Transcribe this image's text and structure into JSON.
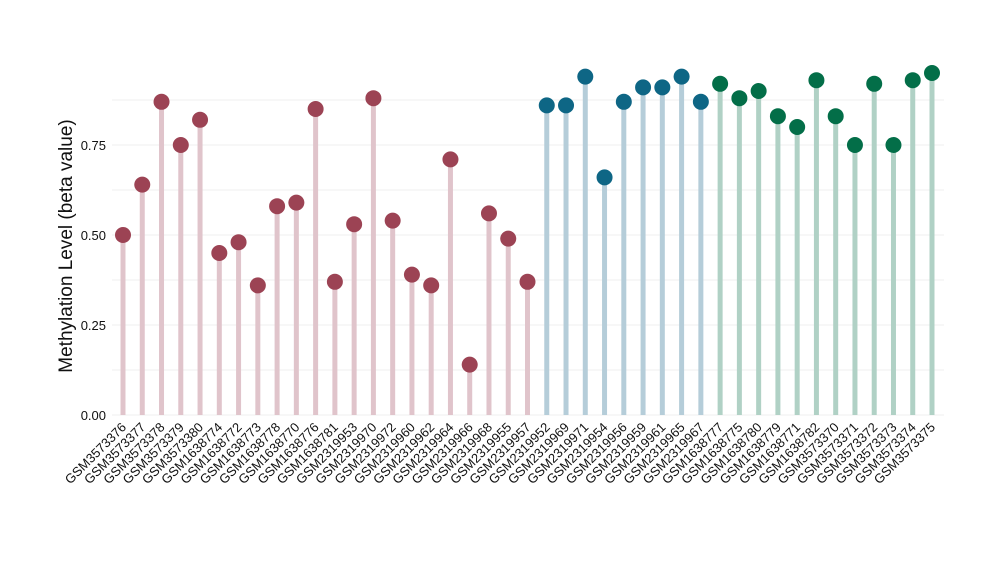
{
  "chart_data": {
    "type": "lollipop",
    "title": "",
    "xlabel": "",
    "ylabel": "Methylation Level (beta value)",
    "ylim": [
      0,
      1.0
    ],
    "yticks": [
      "0.00",
      "0.25",
      "0.50",
      "0.75"
    ],
    "ytick_values": [
      0,
      0.25,
      0.5,
      0.75
    ],
    "grid": true,
    "legend": "none",
    "colors": {
      "group1_point": "#9c4354",
      "group1_stem": "#e0c4cb",
      "group2_point": "#0e6685",
      "group2_stem": "#b5cdd9",
      "group3_point": "#036e48",
      "group3_stem": "#b0d1c5",
      "grid": "#efefef"
    },
    "categories": [
      "GSM3573376",
      "GSM3573377",
      "GSM3573378",
      "GSM3573379",
      "GSM3573380",
      "GSM1638774",
      "GSM1638772",
      "GSM1638773",
      "GSM1638778",
      "GSM1638770",
      "GSM1638776",
      "GSM1638781",
      "GSM2319953",
      "GSM2319970",
      "GSM2319972",
      "GSM2319960",
      "GSM2319962",
      "GSM2319964",
      "GSM2319966",
      "GSM2319968",
      "GSM2319955",
      "GSM2319957",
      "GSM2319952",
      "GSM2319969",
      "GSM2319971",
      "GSM2319954",
      "GSM2319956",
      "GSM2319959",
      "GSM2319961",
      "GSM2319965",
      "GSM2319967",
      "GSM1638777",
      "GSM1638775",
      "GSM1638780",
      "GSM1638779",
      "GSM1638771",
      "GSM1638782",
      "GSM3573370",
      "GSM3573371",
      "GSM3573372",
      "GSM3573373",
      "GSM3573374",
      "GSM3573375"
    ],
    "values": [
      0.5,
      0.64,
      0.87,
      0.75,
      0.82,
      0.45,
      0.48,
      0.36,
      0.58,
      0.59,
      0.85,
      0.37,
      0.53,
      0.88,
      0.54,
      0.39,
      0.36,
      0.71,
      0.14,
      0.56,
      0.49,
      0.37,
      0.86,
      0.86,
      0.94,
      0.66,
      0.87,
      0.91,
      0.91,
      0.94,
      0.87,
      0.92,
      0.88,
      0.9,
      0.83,
      0.8,
      0.93,
      0.83,
      0.75,
      0.92,
      0.75,
      0.93,
      0.95
    ],
    "groups": [
      1,
      1,
      1,
      1,
      1,
      1,
      1,
      1,
      1,
      1,
      1,
      1,
      1,
      1,
      1,
      1,
      1,
      1,
      1,
      1,
      1,
      1,
      2,
      2,
      2,
      2,
      2,
      2,
      2,
      2,
      2,
      3,
      3,
      3,
      3,
      3,
      3,
      3,
      3,
      3,
      3,
      3,
      3
    ]
  }
}
